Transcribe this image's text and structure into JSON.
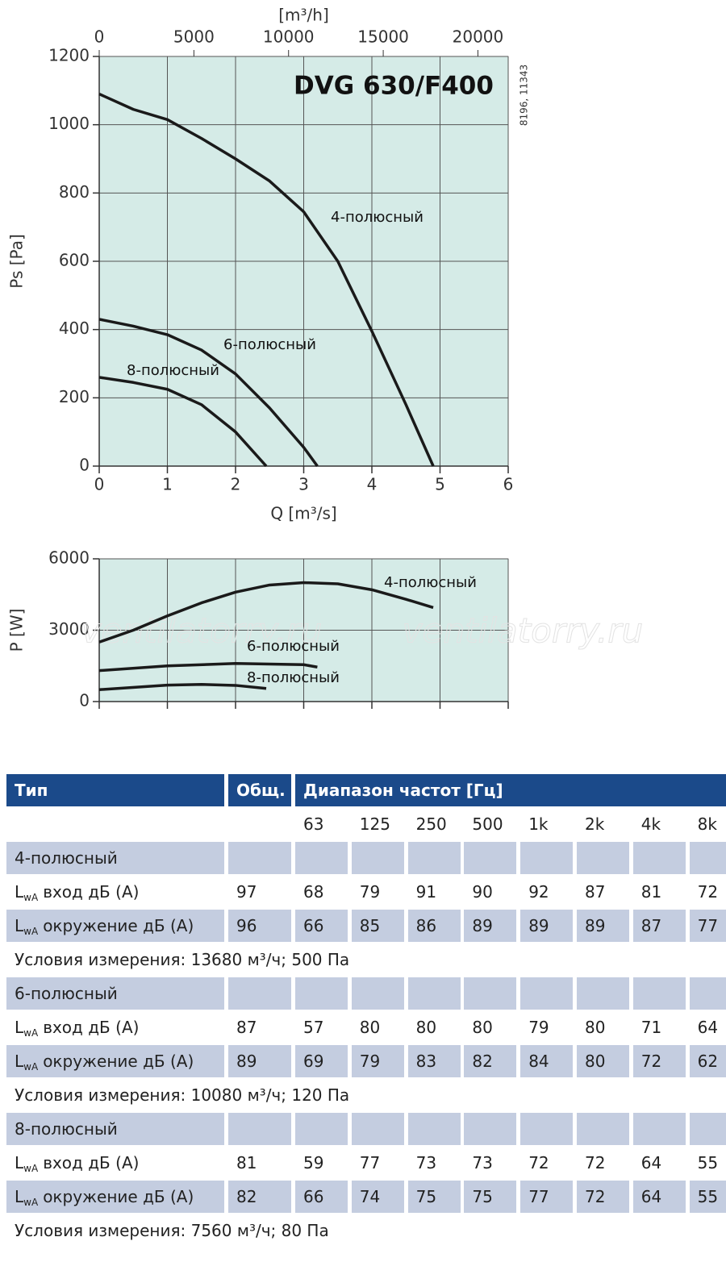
{
  "chart_data": [
    {
      "type": "line",
      "title": "DVG 630/F400",
      "note": "8196, 11343",
      "x_label": "Q [m³/s]",
      "y_label": "Ps [Pa]",
      "x2_label": "[m³/h]",
      "xlim": [
        0,
        6
      ],
      "xticks": [
        0,
        1,
        2,
        3,
        4,
        5,
        6
      ],
      "x2lim": [
        0,
        21600
      ],
      "x2ticks": [
        0,
        5000,
        10000,
        15000,
        20000
      ],
      "ylim": [
        0,
        1200
      ],
      "yticks": [
        0,
        200,
        400,
        600,
        800,
        1000,
        1200
      ],
      "grid": true,
      "series": [
        {
          "name": "4-полюсный",
          "color": "#1a1a1a",
          "x": [
            0,
            0.5,
            1,
            1.5,
            2,
            2.5,
            3,
            3.5,
            4,
            4.5,
            4.9
          ],
          "values": [
            1090,
            1045,
            1015,
            960,
            900,
            835,
            745,
            600,
            395,
            180,
            0
          ]
        },
        {
          "name": "6-полюсный",
          "color": "#1a1a1a",
          "x": [
            0,
            0.5,
            1,
            1.5,
            2,
            2.5,
            3,
            3.2
          ],
          "values": [
            430,
            410,
            385,
            340,
            270,
            170,
            55,
            0
          ]
        },
        {
          "name": "8-полюсный",
          "color": "#1a1a1a",
          "x": [
            0,
            0.5,
            1,
            1.5,
            2,
            2.45
          ],
          "values": [
            260,
            245,
            225,
            180,
            100,
            0
          ]
        }
      ]
    },
    {
      "type": "line",
      "y_label": "P [W]",
      "watermark": [
        "ventilatorry.ru",
        "ventilatorry.ru"
      ],
      "xlim": [
        0,
        6
      ],
      "xticks": [
        0,
        1,
        2,
        3,
        4,
        5,
        6
      ],
      "ylim": [
        0,
        6000
      ],
      "yticks": [
        0,
        3000,
        6000
      ],
      "grid": true,
      "series": [
        {
          "name": "4-полюсный",
          "color": "#1a1a1a",
          "x": [
            0,
            0.5,
            1,
            1.5,
            2,
            2.5,
            3,
            3.5,
            4,
            4.5,
            4.9
          ],
          "values": [
            2500,
            3000,
            3600,
            4150,
            4600,
            4900,
            5000,
            4950,
            4700,
            4300,
            3950
          ]
        },
        {
          "name": "6-полюсный",
          "color": "#1a1a1a",
          "x": [
            0,
            1,
            2,
            3,
            3.2
          ],
          "values": [
            1300,
            1500,
            1600,
            1550,
            1450
          ]
        },
        {
          "name": "8-полюсный",
          "color": "#1a1a1a",
          "x": [
            0,
            1,
            1.5,
            2,
            2.45
          ],
          "values": [
            500,
            690,
            720,
            680,
            550
          ]
        }
      ]
    }
  ],
  "table": {
    "header": [
      "Тип",
      "Общ.",
      "Диапазон частот [Гц]"
    ],
    "frequencies": [
      "63",
      "125",
      "250",
      "500",
      "1k",
      "2k",
      "4k",
      "8k"
    ],
    "groups": [
      {
        "name": "4-полюсный",
        "rows": [
          {
            "label": {
              "main": "L",
              "sub": "wA",
              "rest": "вход дБ (А)"
            },
            "total": 97,
            "bands": [
              68,
              79,
              91,
              90,
              92,
              87,
              81,
              72
            ]
          },
          {
            "label": {
              "main": "L",
              "sub": "wA",
              "rest": "окружение дБ (А)"
            },
            "total": 96,
            "bands": [
              66,
              85,
              86,
              89,
              89,
              89,
              87,
              77
            ]
          }
        ],
        "conditions": "Условия измерения: 13680 м³/ч; 500 Па"
      },
      {
        "name": "6-полюсный",
        "rows": [
          {
            "label": {
              "main": "L",
              "sub": "wA",
              "rest": "вход дБ (А)"
            },
            "total": 87,
            "bands": [
              57,
              80,
              80,
              80,
              79,
              80,
              71,
              64
            ]
          },
          {
            "label": {
              "main": "L",
              "sub": "wA",
              "rest": "окружение дБ (А)"
            },
            "total": 89,
            "bands": [
              69,
              79,
              83,
              82,
              84,
              80,
              72,
              62
            ]
          }
        ],
        "conditions": "Условия измерения: 10080 м³/ч; 120 Па"
      },
      {
        "name": "8-полюсный",
        "rows": [
          {
            "label": {
              "main": "L",
              "sub": "wA",
              "rest": "вход дБ (А)"
            },
            "total": 81,
            "bands": [
              59,
              77,
              73,
              73,
              72,
              72,
              64,
              55
            ]
          },
          {
            "label": {
              "main": "L",
              "sub": "wA",
              "rest": "окружение дБ (А)"
            },
            "total": 82,
            "bands": [
              66,
              74,
              75,
              75,
              77,
              72,
              64,
              55
            ]
          }
        ],
        "conditions": "Условия измерения: 7560 м³/ч; 80 Па"
      }
    ]
  }
}
